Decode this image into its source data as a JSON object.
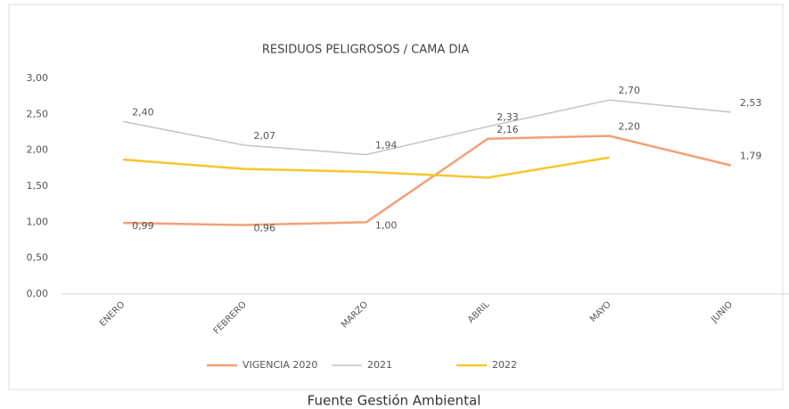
{
  "chart_data": {
    "type": "line",
    "title": "RESIDUOS PELIGROSOS / CAMA DIA",
    "categories": [
      "ENERO",
      "FEBRERO",
      "MARZO",
      "ABRIL",
      "MAYO",
      "JUNIO"
    ],
    "series": [
      {
        "name": "VIGENCIA 2020",
        "color": "#f2a07a",
        "values": [
          0.99,
          0.96,
          1.0,
          2.16,
          2.2,
          1.79
        ],
        "value_labels": [
          "0,99",
          "0,96",
          "1,00",
          "2,16",
          "2,20",
          "1,79"
        ]
      },
      {
        "name": "2021",
        "color": "#c4c4c4",
        "values": [
          2.4,
          2.07,
          1.94,
          2.33,
          2.7,
          2.53
        ],
        "value_labels": [
          "2,40",
          "2,07",
          "1,94",
          "2,33",
          "2,70",
          "2,53"
        ]
      },
      {
        "name": "2022",
        "color": "#f7c52e",
        "values": [
          1.87,
          1.74,
          1.7,
          1.62,
          1.9,
          null
        ]
      }
    ],
    "ylim": [
      0,
      3
    ],
    "yticks": [
      {
        "value": 0,
        "label": "0,00"
      },
      {
        "value": 0.5,
        "label": "0,50"
      },
      {
        "value": 1,
        "label": "1,00"
      },
      {
        "value": 1.5,
        "label": "1,50"
      },
      {
        "value": 2,
        "label": "2,00"
      },
      {
        "value": 2.5,
        "label": "2,50"
      },
      {
        "value": 3,
        "label": "3,00"
      }
    ],
    "grid": false,
    "legend": "bottom",
    "caption": "Fuente Gestión Ambiental"
  }
}
